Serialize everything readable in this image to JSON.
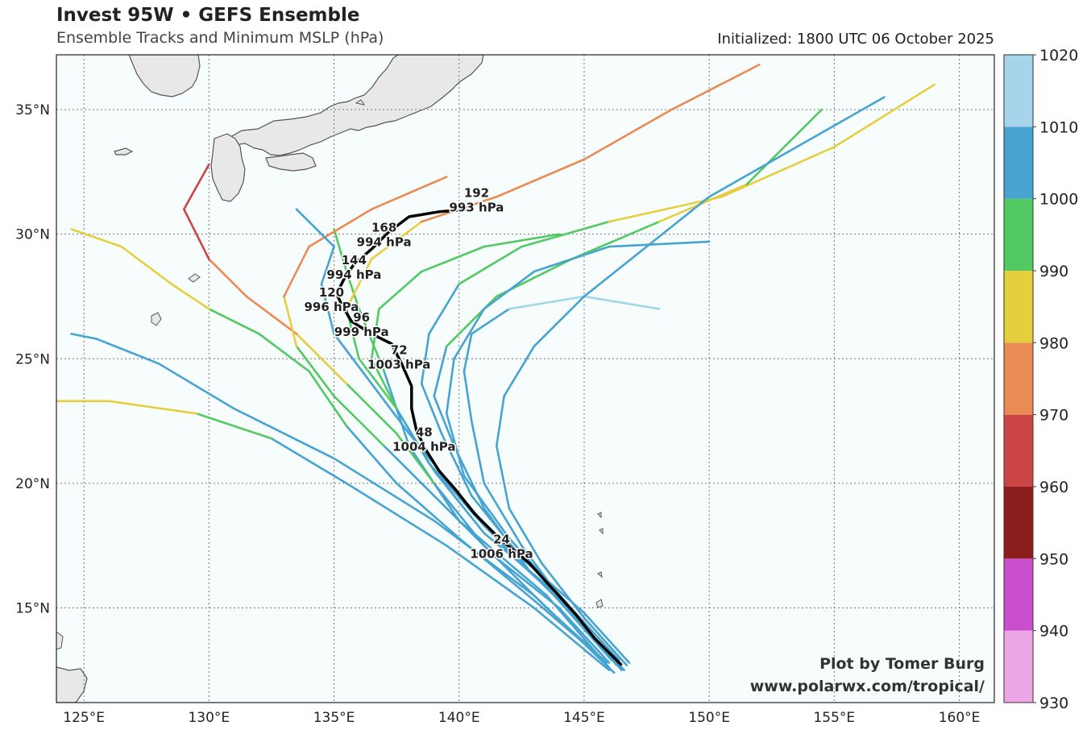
{
  "header": {
    "title": "Invest 95W • GEFS Ensemble",
    "subtitle": "Ensemble Tracks and Minimum MSLP (hPa)",
    "initialized": "Initialized: 1800 UTC 06 October 2025"
  },
  "credit": {
    "line1": "Plot by Tomer Burg",
    "line2": "www.polarwx.com/tropical/"
  },
  "map": {
    "lon_range": [
      123.9,
      161.4
    ],
    "lat_range": [
      11.2,
      37.2
    ],
    "lon_ticks": [
      125,
      130,
      135,
      140,
      145,
      150,
      155,
      160
    ],
    "lon_tick_labels": [
      "125°E",
      "130°E",
      "135°E",
      "140°E",
      "145°E",
      "150°E",
      "155°E",
      "160°E"
    ],
    "lat_ticks": [
      15,
      20,
      25,
      30,
      35
    ],
    "lat_tick_labels": [
      "15°N",
      "20°N",
      "25°N",
      "30°N",
      "35°N"
    ],
    "ocean_color": "#f7fcfd",
    "land_color": "#e8e8e8",
    "gridlines": "dotted"
  },
  "colorbar": {
    "levels": [
      930,
      940,
      950,
      960,
      970,
      980,
      990,
      1000,
      1010,
      1020
    ],
    "labels": [
      "930",
      "940",
      "950",
      "960",
      "970",
      "980",
      "990",
      "1000",
      "1010",
      "1020"
    ],
    "colors": [
      "#eca6e8",
      "#c94fcc",
      "#8c1e1e",
      "#cc4545",
      "#e98b55",
      "#e6cf3f",
      "#53c963",
      "#47a3d0",
      "#a6d4ea"
    ]
  },
  "mean_track": {
    "color": "#000000",
    "points": [
      [
        146.5,
        12.7
      ],
      [
        146.0,
        13.2
      ],
      [
        145.4,
        13.8
      ],
      [
        144.7,
        14.7
      ],
      [
        143.8,
        15.7
      ],
      [
        142.8,
        16.8
      ],
      [
        141.6,
        17.8
      ],
      [
        140.6,
        18.8
      ],
      [
        139.9,
        19.7
      ],
      [
        139.2,
        20.5
      ],
      [
        138.7,
        21.3
      ],
      [
        138.3,
        22.1
      ],
      [
        138.1,
        23.0
      ],
      [
        138.1,
        23.9
      ],
      [
        137.7,
        24.8
      ],
      [
        137.3,
        25.6
      ],
      [
        136.5,
        26.0
      ],
      [
        135.7,
        26.5
      ],
      [
        135.4,
        27.0
      ],
      [
        135.1,
        27.6
      ],
      [
        135.4,
        28.2
      ],
      [
        135.8,
        28.8
      ],
      [
        136.5,
        29.4
      ],
      [
        137.2,
        30.1
      ],
      [
        138.0,
        30.7
      ],
      [
        139.2,
        30.9
      ],
      [
        140.5,
        31.0
      ]
    ],
    "labels": [
      {
        "hour": "24",
        "pressure": "1006 hPa",
        "lon": 141.7,
        "lat": 17.4
      },
      {
        "hour": "48",
        "pressure": "1004 hPa",
        "lon": 138.6,
        "lat": 21.7
      },
      {
        "hour": "72",
        "pressure": "1003 hPa",
        "lon": 137.6,
        "lat": 25.0
      },
      {
        "hour": "96",
        "pressure": "999 hPa",
        "lon": 136.1,
        "lat": 26.3
      },
      {
        "hour": "120",
        "pressure": "996 hPa",
        "lon": 134.9,
        "lat": 27.3
      },
      {
        "hour": "144",
        "pressure": "994 hPa",
        "lon": 135.8,
        "lat": 28.6
      },
      {
        "hour": "168",
        "pressure": "994 hPa",
        "lon": 137.0,
        "lat": 29.9
      },
      {
        "hour": "192",
        "pressure": "993 hPa",
        "lon": 140.7,
        "lat": 31.3
      }
    ]
  },
  "ensemble_tracks": [
    {
      "points": [
        [
          146.0,
          12.6
        ],
        [
          143.5,
          15.5
        ],
        [
          140.0,
          18.5
        ],
        [
          138.0,
          21.5
        ],
        [
          137.0,
          24.5
        ],
        [
          136.0,
          27.0
        ],
        [
          135.5,
          28.5
        ],
        [
          135.0,
          30.2
        ]
      ],
      "pressure": [
        1006,
        1004,
        1003,
        1001,
        999,
        996,
        993,
        990
      ]
    },
    {
      "points": [
        [
          146.8,
          12.8
        ],
        [
          145.0,
          14.8
        ],
        [
          142.5,
          17.0
        ],
        [
          140.5,
          19.5
        ],
        [
          139.3,
          22.0
        ],
        [
          138.5,
          24.0
        ],
        [
          138.8,
          26.0
        ],
        [
          140.0,
          28.0
        ],
        [
          142.5,
          29.5
        ],
        [
          146.0,
          30.5
        ],
        [
          150.5,
          31.5
        ],
        [
          155.0,
          33.5
        ],
        [
          159.0,
          36.0
        ]
      ],
      "pressure": [
        1006,
        1006,
        1005,
        1004,
        1004,
        1003,
        1001,
        998,
        993,
        988,
        984,
        985,
        988
      ]
    },
    {
      "points": [
        [
          146.2,
          12.4
        ],
        [
          143.0,
          15.5
        ],
        [
          139.0,
          18.5
        ],
        [
          135.0,
          21.0
        ],
        [
          131.0,
          23.0
        ],
        [
          128.0,
          24.8
        ],
        [
          125.5,
          25.8
        ],
        [
          124.5,
          26.0
        ]
      ],
      "pressure": [
        1006,
        1005,
        1004,
        1004,
        1004,
        1005,
        1007,
        1012
      ]
    },
    {
      "points": [
        [
          146.0,
          12.5
        ],
        [
          143.0,
          15.0
        ],
        [
          139.5,
          17.5
        ],
        [
          135.5,
          20.0
        ],
        [
          132.5,
          21.8
        ],
        [
          129.5,
          22.8
        ],
        [
          126.0,
          23.3
        ],
        [
          123.9,
          23.3
        ]
      ],
      "pressure": [
        1006,
        1005,
        1004,
        1000,
        995,
        988,
        980,
        976
      ]
    },
    {
      "points": [
        [
          146.4,
          12.9
        ],
        [
          144.0,
          15.5
        ],
        [
          141.0,
          18.0
        ],
        [
          139.0,
          20.5
        ],
        [
          137.5,
          23.0
        ],
        [
          136.0,
          25.0
        ],
        [
          135.5,
          27.0
        ],
        [
          136.5,
          29.0
        ],
        [
          138.5,
          30.5
        ],
        [
          141.5,
          31.5
        ],
        [
          145.0,
          33.0
        ],
        [
          148.5,
          35.0
        ],
        [
          152.0,
          36.8
        ]
      ],
      "pressure": [
        1006,
        1004,
        1002,
        999,
        996,
        990,
        984,
        980,
        976,
        974,
        975,
        978,
        984
      ]
    },
    {
      "points": [
        [
          145.8,
          12.9
        ],
        [
          143.5,
          15.0
        ],
        [
          141.0,
          17.5
        ],
        [
          139.0,
          20.0
        ],
        [
          137.5,
          22.0
        ],
        [
          135.5,
          24.0
        ],
        [
          133.5,
          26.0
        ],
        [
          131.5,
          27.5
        ],
        [
          130.0,
          29.0
        ],
        [
          129.0,
          31.0
        ],
        [
          130.0,
          32.8
        ]
      ],
      "pressure": [
        1006,
        1004,
        1001,
        997,
        992,
        985,
        977,
        970,
        966,
        965,
        968
      ]
    },
    {
      "points": [
        [
          146.6,
          12.5
        ],
        [
          144.5,
          14.8
        ],
        [
          142.5,
          17.5
        ],
        [
          141.0,
          20.0
        ],
        [
          140.5,
          22.5
        ],
        [
          140.2,
          24.5
        ],
        [
          140.5,
          26.0
        ],
        [
          142.0,
          27.0
        ],
        [
          145.0,
          27.5
        ],
        [
          148.0,
          27.0
        ]
      ],
      "pressure": [
        1006,
        1006,
        1005,
        1005,
        1006,
        1007,
        1008,
        1010,
        1011,
        1012
      ]
    },
    {
      "points": [
        [
          146.0,
          12.8
        ],
        [
          144.0,
          15.0
        ],
        [
          141.5,
          17.0
        ],
        [
          139.0,
          19.5
        ],
        [
          137.0,
          21.5
        ],
        [
          135.0,
          23.5
        ],
        [
          133.5,
          25.5
        ],
        [
          133.0,
          27.5
        ],
        [
          134.0,
          29.5
        ],
        [
          136.5,
          31.0
        ],
        [
          139.5,
          32.3
        ]
      ],
      "pressure": [
        1006,
        1005,
        1003,
        1000,
        996,
        991,
        985,
        979,
        975,
        973,
        975
      ]
    },
    {
      "points": [
        [
          146.5,
          12.6
        ],
        [
          144.8,
          14.5
        ],
        [
          142.8,
          16.5
        ],
        [
          141.0,
          19.0
        ],
        [
          139.8,
          21.5
        ],
        [
          139.0,
          23.5
        ],
        [
          139.5,
          25.5
        ],
        [
          141.5,
          27.5
        ],
        [
          144.5,
          29.0
        ],
        [
          148.0,
          30.5
        ],
        [
          151.5,
          32.0
        ],
        [
          154.5,
          35.0
        ]
      ],
      "pressure": [
        1006,
        1006,
        1005,
        1004,
        1003,
        1001,
        998,
        995,
        992,
        989,
        991,
        995
      ]
    },
    {
      "points": [
        [
          146.3,
          12.7
        ],
        [
          144.3,
          15.2
        ],
        [
          142.0,
          17.8
        ],
        [
          140.2,
          20.3
        ],
        [
          139.5,
          22.8
        ],
        [
          139.8,
          25.0
        ],
        [
          141.0,
          27.0
        ],
        [
          143.0,
          28.5
        ],
        [
          146.0,
          29.5
        ],
        [
          150.0,
          29.7
        ]
      ],
      "pressure": [
        1006,
        1006,
        1005,
        1005,
        1005,
        1006,
        1006,
        1007,
        1008,
        1009
      ]
    },
    {
      "points": [
        [
          145.9,
          12.8
        ],
        [
          143.0,
          15.3
        ],
        [
          140.0,
          17.8
        ],
        [
          137.5,
          20.0
        ],
        [
          135.5,
          22.3
        ],
        [
          134.0,
          24.5
        ],
        [
          132.0,
          26.0
        ],
        [
          130.0,
          27.0
        ],
        [
          128.5,
          28.0
        ],
        [
          126.5,
          29.5
        ],
        [
          124.5,
          30.2
        ]
      ],
      "pressure": [
        1006,
        1005,
        1003,
        1001,
        998,
        994,
        990,
        986,
        983,
        982,
        984
      ]
    },
    {
      "points": [
        [
          146.7,
          12.7
        ],
        [
          145.0,
          14.6
        ],
        [
          143.3,
          16.8
        ],
        [
          142.0,
          19.0
        ],
        [
          141.5,
          21.5
        ],
        [
          141.8,
          23.5
        ],
        [
          143.0,
          25.5
        ],
        [
          145.0,
          27.5
        ],
        [
          147.5,
          29.5
        ],
        [
          150.0,
          31.5
        ],
        [
          153.5,
          33.5
        ],
        [
          157.0,
          35.5
        ]
      ],
      "pressure": [
        1006,
        1006,
        1006,
        1005,
        1005,
        1004,
        1003,
        1002,
        1001,
        1002,
        1004,
        1006
      ]
    },
    {
      "points": [
        [
          146.1,
          12.9
        ],
        [
          143.8,
          15.5
        ],
        [
          141.0,
          18.3
        ],
        [
          138.8,
          20.8
        ],
        [
          137.5,
          23.0
        ],
        [
          136.5,
          25.0
        ],
        [
          136.8,
          27.0
        ],
        [
          138.5,
          28.5
        ],
        [
          141.0,
          29.5
        ],
        [
          144.0,
          30.0
        ]
      ],
      "pressure": [
        1006,
        1005,
        1003,
        1001,
        999,
        996,
        993,
        991,
        990,
        990
      ]
    },
    {
      "points": [
        [
          146.5,
          12.5
        ],
        [
          144.5,
          14.9
        ],
        [
          142.0,
          17.2
        ],
        [
          139.8,
          19.8
        ],
        [
          138.0,
          22.0
        ],
        [
          136.5,
          24.0
        ],
        [
          135.0,
          26.0
        ],
        [
          134.5,
          28.0
        ],
        [
          135.0,
          29.5
        ],
        [
          133.5,
          31.0
        ]
      ],
      "pressure": [
        1006,
        1006,
        1005,
        1004,
        1004,
        1003,
        1003,
        1003,
        1004,
        1005
      ]
    }
  ]
}
